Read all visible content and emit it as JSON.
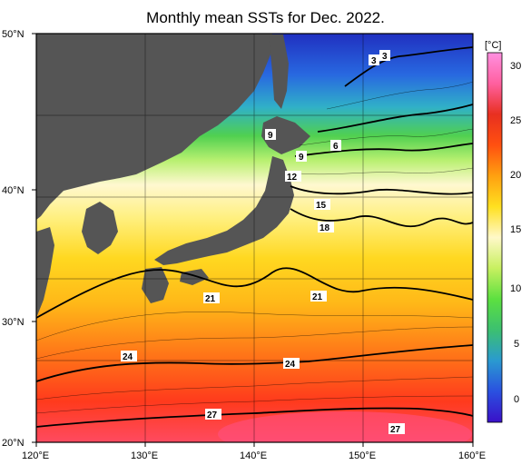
{
  "title": "Monthly mean SSTs for Dec. 2022.",
  "unit": "[°C]",
  "lat_labels": [
    "50°N",
    "40°N",
    "30°N",
    "20°N"
  ],
  "lon_labels": [
    "120°E",
    "130°E",
    "140°E",
    "150°E",
    "160°E"
  ],
  "colorbar": {
    "ticks": [
      "30",
      "25",
      "20",
      "15",
      "10",
      "5",
      "0"
    ],
    "range": [
      -2,
      32
    ],
    "colors": [
      "#3a10c8",
      "#2a50e0",
      "#2a9ad0",
      "#3cc070",
      "#5ce040",
      "#c8f060",
      "#fff8c8",
      "#ffe020",
      "#ffa010",
      "#ff5010",
      "#e83020",
      "#ff60a0",
      "#ff90e0"
    ]
  },
  "contour_labels": [
    "3",
    "3",
    "9",
    "9",
    "6",
    "12",
    "15",
    "18",
    "21",
    "21",
    "24",
    "24",
    "27",
    "27"
  ],
  "land_color": "#555555"
}
